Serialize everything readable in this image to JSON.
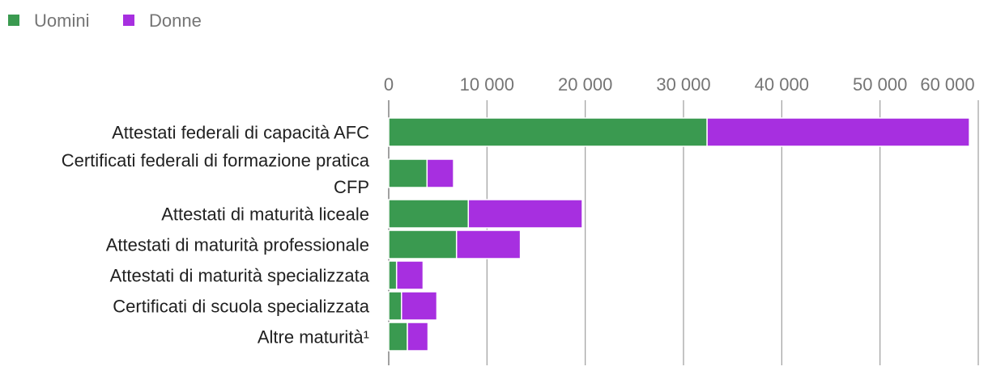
{
  "chart_data": {
    "type": "bar",
    "orientation": "horizontal",
    "stacked": true,
    "title": "",
    "xlabel": "",
    "ylabel": "",
    "legend_position": "top-left",
    "grid": true,
    "categories": [
      [
        "Attestati federali di capacità AFC"
      ],
      [
        "Certificati federali di formazione pratica",
        "CFP"
      ],
      [
        "Attestati di maturità liceale"
      ],
      [
        "Attestati di maturità professionale"
      ],
      [
        "Attestati di maturità specializzata"
      ],
      [
        "Certificati di scuola specializzata"
      ],
      [
        "Altre maturità¹"
      ]
    ],
    "series": [
      {
        "name": "Uomini",
        "color": "#3a9a50",
        "values": [
          32400,
          3900,
          8100,
          6900,
          800,
          1300,
          1900
        ]
      },
      {
        "name": "Donne",
        "color": "#a72fe0",
        "values": [
          26700,
          2700,
          11600,
          6500,
          2700,
          3600,
          2100
        ]
      }
    ],
    "xlim": [
      0,
      60000
    ],
    "ticks": [
      0,
      10000,
      20000,
      30000,
      40000,
      50000,
      60000
    ],
    "tick_labels": [
      "0",
      "10 000",
      "20 000",
      "30 000",
      "40 000",
      "50 000",
      "60 000"
    ]
  }
}
